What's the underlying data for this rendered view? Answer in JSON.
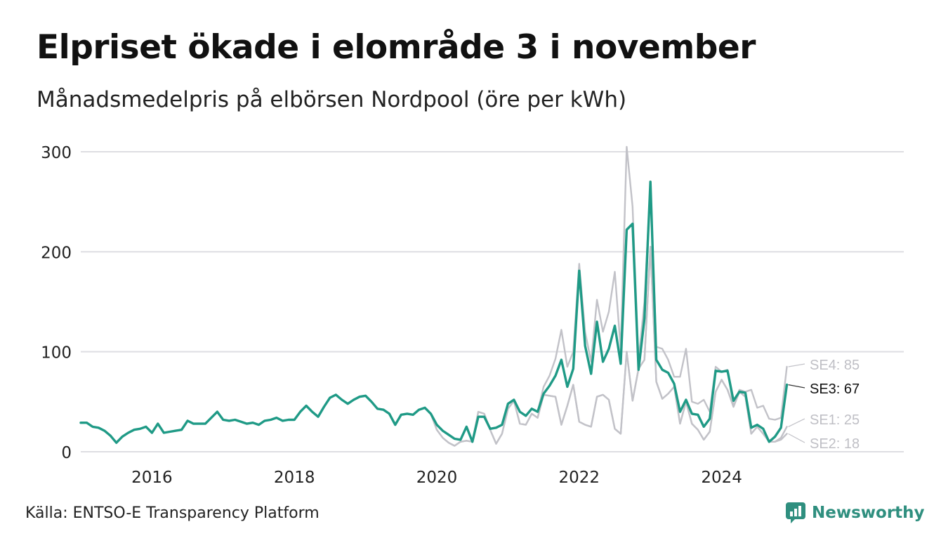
{
  "title": "Elpriset ökade i elområde 3 i november",
  "subtitle": "Månadsmedelpris på elbörsen Nordpool (öre per kWh)",
  "source": "Källa: ENTSO-E Transparency Platform",
  "brand": "Newsworthy",
  "colors": {
    "highlight": "#1f9a86",
    "muted": "#c2c2c8",
    "grid": "#dedee2",
    "highlight_label": "#111111",
    "muted_label": "#bfbfc5",
    "brand": "#2f8f7f"
  },
  "chart_data": {
    "type": "line",
    "x_start": "2015-01",
    "x_end": "2024-11",
    "x_ticks": [
      "2016",
      "2018",
      "2020",
      "2022",
      "2024"
    ],
    "y_ticks": [
      "0",
      "100",
      "200",
      "300"
    ],
    "ylim": [
      0,
      300
    ],
    "grid": true,
    "legend": "end-of-line labels",
    "series": [
      {
        "name": "SE3",
        "label": "SE3: 67",
        "highlight": true,
        "values": [
          29,
          29,
          25,
          24,
          21,
          16,
          9,
          15,
          19,
          22,
          23,
          25,
          19,
          28,
          19,
          20,
          21,
          22,
          31,
          28,
          28,
          28,
          34,
          40,
          32,
          31,
          32,
          30,
          28,
          29,
          27,
          31,
          32,
          34,
          31,
          32,
          32,
          40,
          46,
          40,
          35,
          45,
          54,
          57,
          52,
          48,
          52,
          55,
          56,
          50,
          43,
          42,
          38,
          27,
          37,
          38,
          37,
          42,
          44,
          38,
          27,
          21,
          17,
          13,
          12,
          25,
          10,
          35,
          35,
          23,
          24,
          27,
          48,
          52,
          40,
          36,
          43,
          40,
          58,
          66,
          76,
          92,
          65,
          83,
          181,
          106,
          78,
          130,
          90,
          103,
          126,
          88,
          222,
          228,
          82,
          133,
          270,
          92,
          82,
          79,
          68,
          40,
          52,
          38,
          37,
          25,
          33,
          81,
          80,
          81,
          51,
          60,
          59,
          24,
          27,
          23,
          10,
          15,
          24,
          67
        ]
      },
      {
        "name": "SE4",
        "label": "SE4: 85",
        "highlight": false,
        "values": [
          29,
          29,
          25,
          24,
          21,
          16,
          9,
          15,
          19,
          22,
          23,
          25,
          19,
          28,
          19,
          20,
          21,
          22,
          31,
          28,
          28,
          28,
          34,
          40,
          32,
          31,
          32,
          30,
          28,
          29,
          27,
          31,
          32,
          34,
          31,
          32,
          32,
          40,
          46,
          40,
          35,
          45,
          54,
          57,
          52,
          48,
          52,
          55,
          56,
          50,
          43,
          42,
          38,
          27,
          37,
          38,
          37,
          42,
          44,
          38,
          27,
          21,
          17,
          13,
          12,
          25,
          10,
          35,
          35,
          23,
          24,
          27,
          48,
          52,
          40,
          36,
          43,
          40,
          65,
          76,
          93,
          122,
          85,
          100,
          188,
          120,
          90,
          152,
          120,
          140,
          180,
          102,
          305,
          245,
          92,
          150,
          268,
          105,
          103,
          92,
          75,
          75,
          103,
          50,
          48,
          52,
          40,
          85,
          80,
          82,
          45,
          62,
          60,
          62,
          44,
          46,
          33,
          32,
          34,
          85
        ]
      },
      {
        "name": "SE1",
        "label": "SE1: 25",
        "highlight": false,
        "values": [
          29,
          29,
          25,
          24,
          21,
          16,
          9,
          15,
          19,
          22,
          23,
          25,
          19,
          28,
          19,
          20,
          21,
          22,
          31,
          28,
          28,
          28,
          34,
          40,
          32,
          31,
          32,
          30,
          28,
          29,
          27,
          31,
          32,
          34,
          31,
          32,
          32,
          40,
          46,
          40,
          35,
          45,
          54,
          57,
          52,
          48,
          52,
          55,
          56,
          50,
          43,
          42,
          38,
          27,
          37,
          38,
          37,
          42,
          44,
          38,
          22,
          14,
          9,
          6,
          10,
          11,
          10,
          40,
          38,
          22,
          8,
          18,
          43,
          51,
          28,
          27,
          38,
          34,
          57,
          56,
          55,
          27,
          46,
          67,
          30,
          27,
          25,
          55,
          57,
          52,
          23,
          18,
          100,
          51,
          83,
          92,
          205,
          70,
          53,
          58,
          65,
          28,
          50,
          28,
          22,
          12,
          20,
          60,
          72,
          62,
          45,
          60,
          55,
          18,
          25,
          18,
          10,
          10,
          14,
          25
        ]
      },
      {
        "name": "SE2",
        "label": "SE2: 18",
        "highlight": false,
        "values": [
          29,
          29,
          25,
          24,
          21,
          16,
          9,
          15,
          19,
          22,
          23,
          25,
          19,
          28,
          19,
          20,
          21,
          22,
          31,
          28,
          28,
          28,
          34,
          40,
          32,
          31,
          32,
          30,
          28,
          29,
          27,
          31,
          32,
          34,
          31,
          32,
          32,
          40,
          46,
          40,
          35,
          45,
          54,
          57,
          52,
          48,
          52,
          55,
          56,
          50,
          43,
          42,
          38,
          27,
          37,
          38,
          37,
          42,
          44,
          38,
          22,
          14,
          9,
          6,
          10,
          11,
          10,
          40,
          38,
          22,
          8,
          18,
          43,
          51,
          28,
          27,
          38,
          34,
          57,
          56,
          55,
          27,
          46,
          67,
          30,
          27,
          25,
          55,
          57,
          52,
          23,
          18,
          100,
          51,
          83,
          92,
          205,
          70,
          53,
          58,
          65,
          28,
          50,
          28,
          22,
          12,
          20,
          60,
          72,
          62,
          45,
          60,
          55,
          18,
          25,
          18,
          10,
          10,
          12,
          18
        ]
      }
    ]
  }
}
